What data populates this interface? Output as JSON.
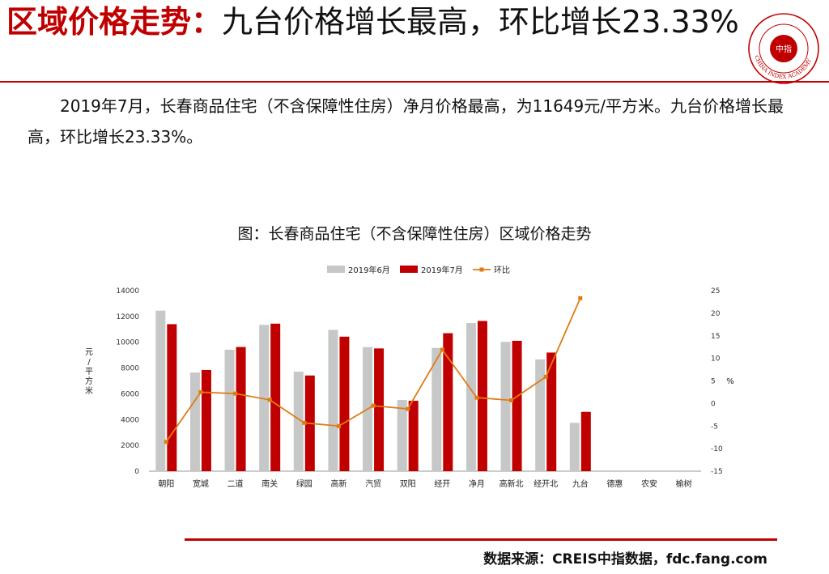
{
  "header": {
    "title_accent": "区域价格走势：",
    "title_rest": "九台价格增长最高，环比增长23.33%",
    "logo": {
      "icon": "china-index-academy-seal",
      "center_text": "中指",
      "ring_text": "CHINA INDEX ACADEMY",
      "color": "#c00000"
    }
  },
  "body": {
    "paragraph": "2019年7月，长春商品住宅（不含保障性住房）净月价格最高，为11649元/平方米。九台价格增长最高，环比增长23.33%。"
  },
  "chart_title": "图：长春商品住宅（不含保障性住房）区域价格走势",
  "footer": {
    "source": "数据来源：CREIS中指数据，fdc.fang.com"
  },
  "chart_data": {
    "type": "bar",
    "categories": [
      "朝阳",
      "宽城",
      "二道",
      "南关",
      "绿园",
      "高新",
      "汽贸",
      "双阳",
      "经开",
      "净月",
      "高新北",
      "经开北",
      "九台",
      "德惠",
      "农安",
      "榆树"
    ],
    "series": [
      {
        "name": "2019年6月",
        "type": "bar",
        "axis": "left",
        "color": "#c6c8c7",
        "values": [
          12450,
          7650,
          9420,
          11350,
          7720,
          10960,
          9620,
          5520,
          9560,
          11480,
          10030,
          8670,
          3750,
          null,
          null,
          null
        ]
      },
      {
        "name": "2019年7月",
        "type": "bar",
        "axis": "left",
        "color": "#c00000",
        "values": [
          11400,
          7850,
          9630,
          11440,
          7420,
          10430,
          9520,
          5460,
          10700,
          11649,
          10110,
          9200,
          4600,
          null,
          null,
          null
        ]
      },
      {
        "name": "环比",
        "type": "line",
        "axis": "right",
        "color": "#e07b14",
        "values": [
          -8.5,
          2.5,
          2.2,
          0.8,
          -4.3,
          -5.0,
          -0.5,
          -1.2,
          11.9,
          1.3,
          0.7,
          5.9,
          23.33,
          null,
          null,
          null
        ]
      }
    ],
    "ylabel": "元/平方米",
    "y2label": "%",
    "ylim": [
      0,
      14000
    ],
    "yticks": [
      0,
      2000,
      4000,
      6000,
      8000,
      10000,
      12000,
      14000
    ],
    "y2lim": [
      -15,
      25
    ],
    "y2ticks": [
      -15,
      -10,
      -5,
      0,
      5,
      10,
      15,
      20,
      25
    ],
    "legend": "top-center",
    "grid": false
  }
}
